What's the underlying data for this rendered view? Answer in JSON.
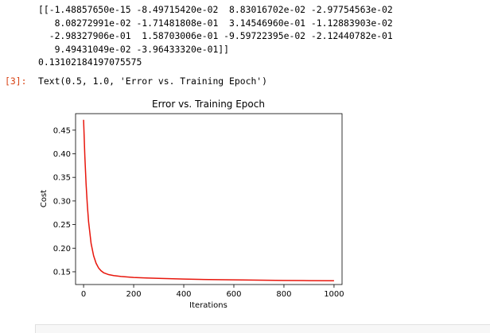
{
  "cell_output": {
    "stdout_lines": [
      "[[-1.48857650e-15 -8.49715420e-02  8.83016702e-02 -2.97754563e-02",
      "   8.08272991e-02 -1.71481808e-01  3.14546960e-01 -1.12883903e-02",
      "  -2.98327906e-01  1.58703006e-01 -9.59722395e-02 -2.12440782e-01",
      "   9.49431049e-02 -3.96433320e-01]]",
      "0.13102184197075575"
    ],
    "prompt": "[3]:",
    "out_text": "Text(0.5, 1.0, 'Error vs. Training Epoch')"
  },
  "colors": {
    "line": "#e8160c",
    "prompt": "#d84315"
  },
  "chart_data": {
    "type": "line",
    "title": "Error vs. Training Epoch",
    "xlabel": "Iterations",
    "ylabel": "Cost",
    "xlim": [
      -32,
      1032
    ],
    "ylim": [
      0.123,
      0.485
    ],
    "xticks": [
      0,
      200,
      400,
      600,
      800,
      1000
    ],
    "yticks": [
      0.15,
      0.2,
      0.25,
      0.3,
      0.35,
      0.4,
      0.45
    ],
    "ytick_labels": [
      "0.15",
      "0.20",
      "0.25",
      "0.30",
      "0.35",
      "0.40",
      "0.45"
    ],
    "xtick_labels": [
      "0",
      "200",
      "400",
      "600",
      "800",
      "1000"
    ],
    "grid": false,
    "series": [
      {
        "x": [
          0,
          5,
          10,
          15,
          20,
          30,
          40,
          50,
          60,
          70,
          80,
          100,
          120,
          150,
          200,
          250,
          300,
          400,
          500,
          600,
          700,
          800,
          900,
          1000
        ],
        "y": [
          0.472,
          0.395,
          0.336,
          0.291,
          0.256,
          0.21,
          0.184,
          0.168,
          0.158,
          0.152,
          0.148,
          0.144,
          0.142,
          0.14,
          0.138,
          0.137,
          0.136,
          0.1345,
          0.1335,
          0.1328,
          0.1322,
          0.1317,
          0.1313,
          0.131
        ]
      }
    ]
  }
}
